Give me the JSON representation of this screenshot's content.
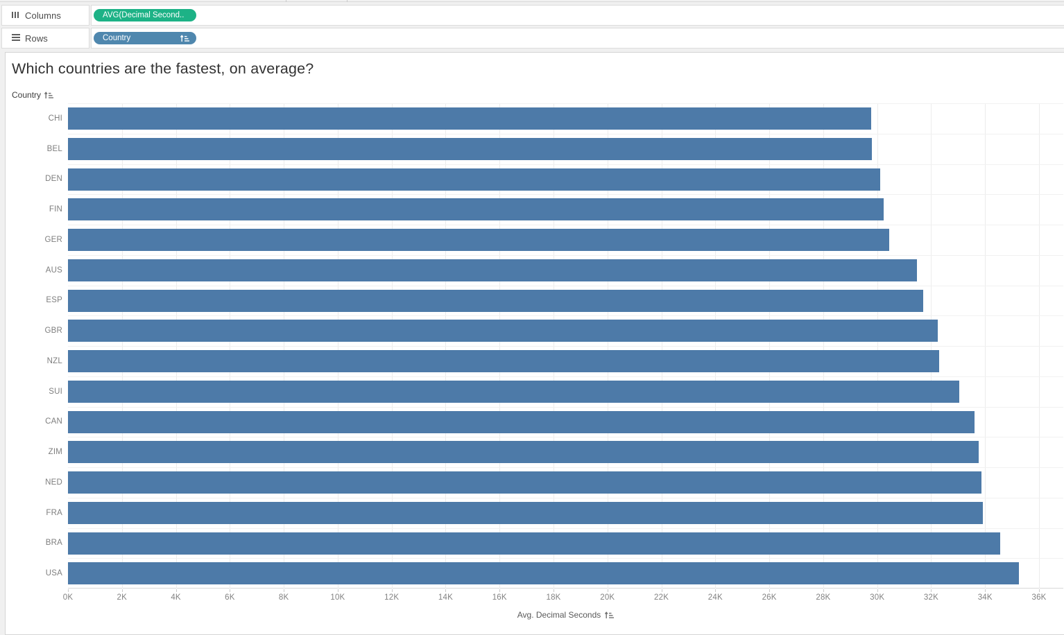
{
  "shelves": {
    "columns_label": "Columns",
    "rows_label": "Rows",
    "columns_pill_label": "AVG(Decimal Second..",
    "rows_pill_label": "Country"
  },
  "sheet": {
    "title": "Which countries are the fastest, on average?",
    "row_field_header": "Country",
    "axis_title": "Avg. Decimal Seconds"
  },
  "colors": {
    "bar": "#4d7aa8",
    "measure_pill": "#1db286",
    "dimension_pill": "#4f87ae",
    "gridline": "#ececec"
  },
  "icons": {
    "columns_shelf": "columns-icon",
    "rows_shelf": "rows-icon",
    "sort": "sort-ascending-icon"
  },
  "chart_data": {
    "type": "bar",
    "orientation": "horizontal",
    "title": "Which countries are the fastest, on average?",
    "xlabel": "Avg. Decimal Seconds",
    "ylabel": "Country",
    "sort": "ascending by value",
    "grid": true,
    "xlim": [
      0,
      36000
    ],
    "categories": [
      "CHI",
      "BEL",
      "DEN",
      "FIN",
      "GER",
      "AUS",
      "ESP",
      "GBR",
      "NZL",
      "SUI",
      "CAN",
      "ZIM",
      "NED",
      "FRA",
      "BRA",
      "USA"
    ],
    "values": [
      29780,
      29800,
      30100,
      30230,
      30440,
      31470,
      31700,
      32240,
      32290,
      33040,
      33600,
      33760,
      33860,
      33910,
      34560,
      35250
    ],
    "x_ticks": [
      {
        "value": 0,
        "label": "0K"
      },
      {
        "value": 2000,
        "label": "2K"
      },
      {
        "value": 4000,
        "label": "4K"
      },
      {
        "value": 6000,
        "label": "6K"
      },
      {
        "value": 8000,
        "label": "8K"
      },
      {
        "value": 10000,
        "label": "10K"
      },
      {
        "value": 12000,
        "label": "12K"
      },
      {
        "value": 14000,
        "label": "14K"
      },
      {
        "value": 16000,
        "label": "16K"
      },
      {
        "value": 18000,
        "label": "18K"
      },
      {
        "value": 20000,
        "label": "20K"
      },
      {
        "value": 22000,
        "label": "22K"
      },
      {
        "value": 24000,
        "label": "24K"
      },
      {
        "value": 26000,
        "label": "26K"
      },
      {
        "value": 28000,
        "label": "28K"
      },
      {
        "value": 30000,
        "label": "30K"
      },
      {
        "value": 32000,
        "label": "32K"
      },
      {
        "value": 34000,
        "label": "34K"
      },
      {
        "value": 36000,
        "label": "36K"
      }
    ]
  }
}
